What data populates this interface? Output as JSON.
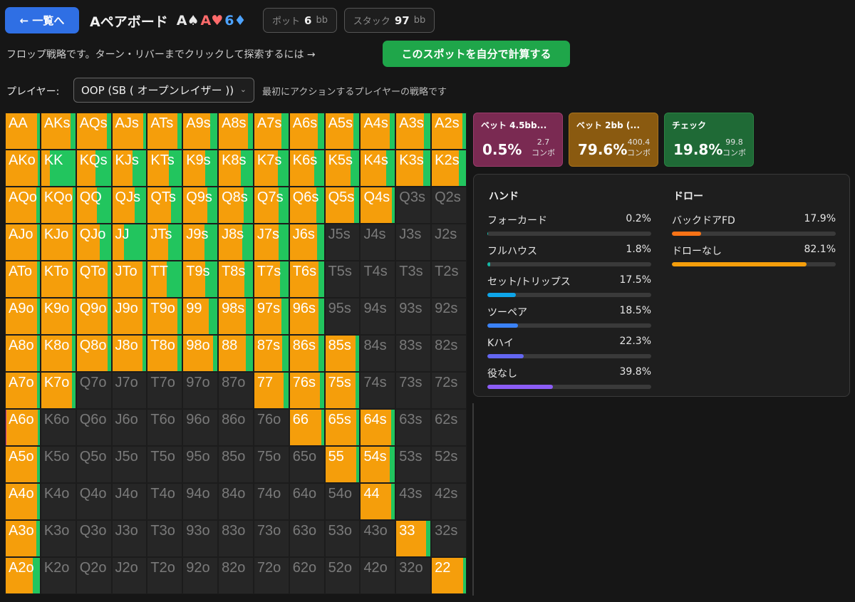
{
  "header": {
    "back_label": "← 一覧へ",
    "title": "Aペアボード",
    "board": [
      {
        "rank": "A",
        "suit": "♠",
        "color": "#e8e8e8"
      },
      {
        "rank": "A",
        "suit": "♥",
        "color": "#ff6b6b"
      },
      {
        "rank": "6",
        "suit": "♦",
        "color": "#4da3ff"
      }
    ],
    "pot_label": "ポット",
    "pot_value": "6",
    "pot_unit": "bb",
    "stack_label": "スタック",
    "stack_value": "97",
    "stack_unit": "bb"
  },
  "hint": {
    "text": "フロップ戦略です。ターン・リバーまでクリックして探索するには →",
    "button": "このスポットを自分で計算する"
  },
  "player": {
    "label": "プレイヤー:",
    "selected": "OOP (SB ( オープンレイザー ))",
    "description": "最初にアクションするプレイヤーの戦略です"
  },
  "colors": {
    "bet_large": "#d33a8a",
    "bet_small": "#f59e0b",
    "check": "#22c55e"
  },
  "actions": [
    {
      "name": "ベット 4.5bb...",
      "pct": "0.5%",
      "combos": "2.7",
      "combo_label": "コンボ"
    },
    {
      "name": "ベット 2bb (...",
      "pct": "79.6%",
      "combos": "400.4",
      "combo_label": "コンボ"
    },
    {
      "name": "チェック",
      "pct": "19.8%",
      "combos": "99.8",
      "combo_label": "コンボ"
    }
  ],
  "stats": {
    "hand_header": "ハンド",
    "draw_header": "ドロー",
    "hands": [
      {
        "name": "フォーカード",
        "pct": "0.2%",
        "value": 0.2,
        "color": "#14b8a6"
      },
      {
        "name": "フルハウス",
        "pct": "1.8%",
        "value": 1.8,
        "color": "#14b8a6"
      },
      {
        "name": "セット/トリップス",
        "pct": "17.5%",
        "value": 17.5,
        "color": "#0ea5e9"
      },
      {
        "name": "ツーペア",
        "pct": "18.5%",
        "value": 18.5,
        "color": "#3b82f6"
      },
      {
        "name": "Kハイ",
        "pct": "22.3%",
        "value": 22.3,
        "color": "#6366f1"
      },
      {
        "name": "役なし",
        "pct": "39.8%",
        "value": 39.8,
        "color": "#8b5cf6"
      }
    ],
    "draws": [
      {
        "name": "バックドアFD",
        "pct": "17.9%",
        "value": 17.9,
        "color": "#f97316"
      },
      {
        "name": "ドローなし",
        "pct": "82.1%",
        "value": 82.1,
        "color": "#f59e0b"
      }
    ]
  },
  "grid": {
    "ranks": [
      "A",
      "K",
      "Q",
      "J",
      "T",
      "9",
      "8",
      "7",
      "6",
      "5",
      "4",
      "3",
      "2"
    ],
    "strategy": [
      [
        [
          0,
          92,
          8
        ],
        [
          0,
          85,
          15
        ],
        [
          0,
          88,
          12
        ],
        [
          0,
          90,
          10
        ],
        [
          0,
          88,
          12
        ],
        [
          0,
          80,
          20
        ],
        [
          0,
          85,
          15
        ],
        [
          0,
          80,
          20
        ],
        [
          0,
          82,
          18
        ],
        [
          0,
          82,
          18
        ],
        [
          0,
          85,
          15
        ],
        [
          0,
          80,
          20
        ],
        [
          0,
          90,
          10
        ]
      ],
      [
        [
          0,
          95,
          5
        ],
        [
          0,
          25,
          75
        ],
        [
          0,
          55,
          45
        ],
        [
          0,
          60,
          40
        ],
        [
          0,
          62,
          38
        ],
        [
          0,
          65,
          35
        ],
        [
          0,
          65,
          35
        ],
        [
          0,
          70,
          30
        ],
        [
          0,
          72,
          28
        ],
        [
          0,
          74,
          26
        ],
        [
          0,
          74,
          26
        ],
        [
          0,
          78,
          22
        ],
        [
          0,
          80,
          20
        ]
      ],
      [
        [
          0,
          90,
          10
        ],
        [
          0,
          93,
          7
        ],
        [
          0,
          60,
          40
        ],
        [
          0,
          65,
          35
        ],
        [
          0,
          68,
          32
        ],
        [
          0,
          70,
          30
        ],
        [
          0,
          72,
          28
        ],
        [
          0,
          72,
          28
        ],
        [
          0,
          78,
          22
        ],
        [
          0,
          85,
          15
        ],
        [
          0,
          92,
          8
        ],
        null,
        null
      ],
      [
        [
          0,
          92,
          8
        ],
        [
          0,
          92,
          8
        ],
        [
          0,
          68,
          32
        ],
        [
          0,
          35,
          65
        ],
        [
          0,
          60,
          40
        ],
        [
          0,
          62,
          38
        ],
        [
          0,
          68,
          32
        ],
        [
          0,
          72,
          28
        ],
        [
          0,
          80,
          20
        ],
        null,
        null,
        null,
        null
      ],
      [
        [
          0,
          93,
          7
        ],
        [
          0,
          92,
          8
        ],
        [
          0,
          90,
          10
        ],
        [
          0,
          88,
          12
        ],
        [
          0,
          55,
          45
        ],
        [
          0,
          65,
          35
        ],
        [
          0,
          75,
          25
        ],
        [
          0,
          75,
          25
        ],
        [
          0,
          85,
          15
        ],
        null,
        null,
        null,
        null
      ],
      [
        [
          0,
          92,
          8
        ],
        [
          0,
          90,
          10
        ],
        [
          0,
          90,
          10
        ],
        [
          0,
          88,
          12
        ],
        [
          0,
          88,
          12
        ],
        [
          0,
          75,
          25
        ],
        [
          0,
          80,
          20
        ],
        [
          0,
          80,
          20
        ],
        [
          0,
          85,
          15
        ],
        null,
        null,
        null,
        null
      ],
      [
        [
          0,
          92,
          8
        ],
        [
          0,
          90,
          10
        ],
        [
          0,
          90,
          10
        ],
        [
          0,
          88,
          12
        ],
        [
          0,
          88,
          12
        ],
        [
          0,
          88,
          12
        ],
        [
          0,
          80,
          20
        ],
        [
          0,
          82,
          18
        ],
        [
          0,
          85,
          15
        ],
        [
          0,
          88,
          12
        ],
        null,
        null,
        null
      ],
      [
        [
          0,
          93,
          7
        ],
        [
          0,
          90,
          10
        ],
        null,
        null,
        null,
        null,
        null,
        [
          0,
          85,
          15
        ],
        [
          0,
          88,
          12
        ],
        [
          0,
          88,
          12
        ],
        null,
        null,
        null
      ],
      [
        [
          2,
          93,
          5
        ],
        null,
        null,
        null,
        null,
        null,
        null,
        null,
        [
          0,
          92,
          8
        ],
        [
          0,
          90,
          10
        ],
        [
          0,
          90,
          10
        ],
        null,
        null
      ],
      [
        [
          0,
          92,
          8
        ],
        null,
        null,
        null,
        null,
        null,
        null,
        null,
        null,
        [
          0,
          90,
          10
        ],
        [
          0,
          85,
          15
        ],
        null,
        null
      ],
      [
        [
          0,
          93,
          7
        ],
        null,
        null,
        null,
        null,
        null,
        null,
        null,
        null,
        null,
        [
          0,
          90,
          10
        ],
        null,
        null
      ],
      [
        [
          0,
          90,
          10
        ],
        null,
        null,
        null,
        null,
        null,
        null,
        null,
        null,
        null,
        null,
        [
          0,
          88,
          12
        ],
        null
      ],
      [
        [
          0,
          80,
          20
        ],
        null,
        null,
        null,
        null,
        null,
        null,
        null,
        null,
        null,
        null,
        null,
        [
          0,
          92,
          8
        ]
      ]
    ]
  }
}
